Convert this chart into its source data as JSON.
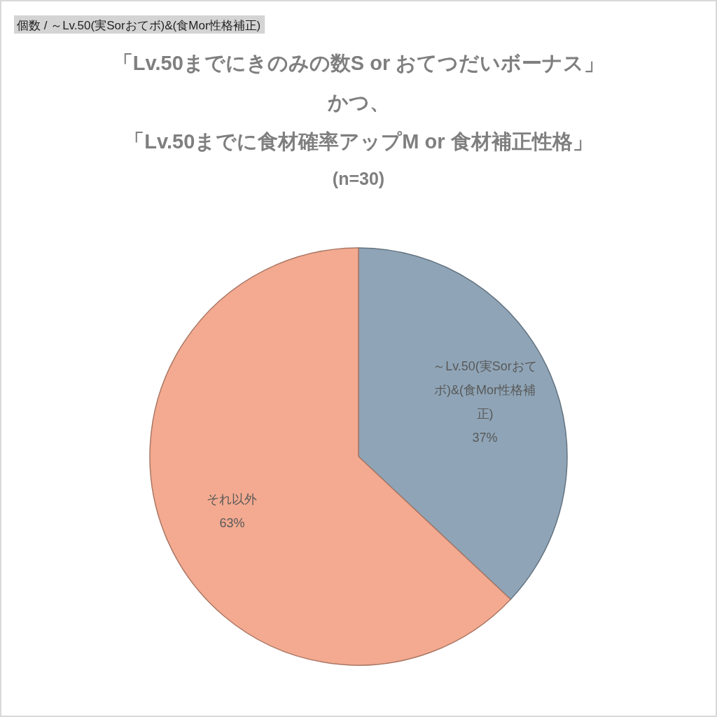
{
  "chart_data": {
    "type": "pie",
    "title": "「Lv.50までにきのみの数S or おてつだいボーナス」かつ、「Lv.50までに食材確率アップM or 食材補正性格」",
    "subtitle": "(n=30)",
    "annotations": [
      "個数 / ～Lv.50(実Sorおてボ)&(食Mor性格補正)"
    ],
    "categories": [
      "～Lv.50(実Sorおてボ)&(食Mor性格補正)",
      "それ以外"
    ],
    "values": [
      37,
      63
    ],
    "value_labels": [
      "37%",
      "63%"
    ],
    "colors": [
      "#8fa5b7",
      "#f3aa90"
    ]
  }
}
